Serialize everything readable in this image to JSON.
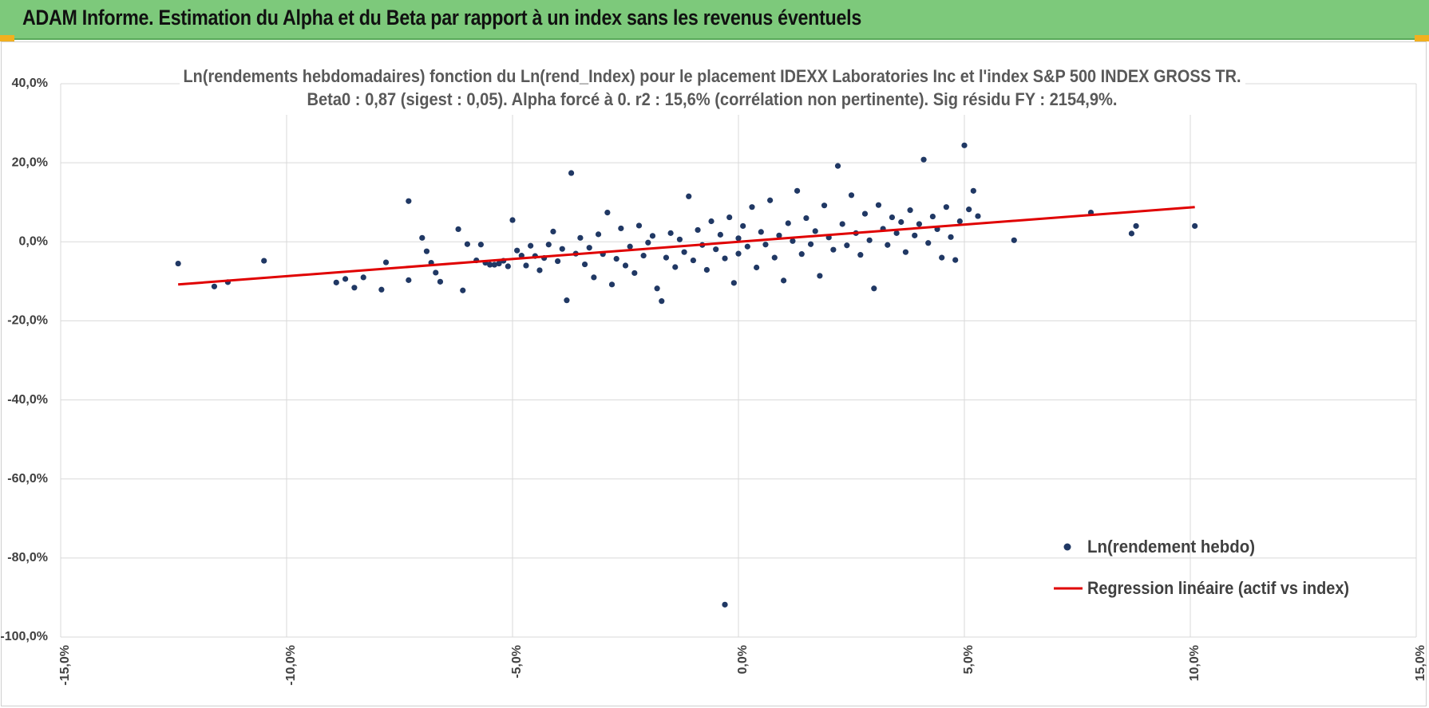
{
  "header": {
    "title": "ADAM Informe. Estimation du Alpha et du Beta par rapport à un index sans les revenus éventuels"
  },
  "colors": {
    "banner": "#7dc97b",
    "accent": "#f2b01e",
    "points": "#203864",
    "regression": "#e00000",
    "grid": "#d9d9d9"
  },
  "chart_data": {
    "type": "scatter",
    "title": "Ln(rendements hebdomadaires) fonction du Ln(rend_Index) pour le placement IDEXX Laboratories Inc et l'index S&P 500 INDEX GROSS TR.",
    "subtitle": "Beta0 : 0,87 (sigest : 0,05).  Alpha forcé à 0. r2 : 15,6% (corrélation non pertinente). Sig résidu FY : 2154,9%.",
    "xlim": [
      -0.15,
      0.15
    ],
    "ylim": [
      -1.0,
      0.4
    ],
    "x_ticks": [
      "-15,0%",
      "-10,0%",
      "-5,0%",
      "0,0%",
      "5,0%",
      "10,0%",
      "15,0%"
    ],
    "y_ticks": [
      "40,0%",
      "20,0%",
      "0,0%",
      "-20,0%",
      "-40,0%",
      "-60,0%",
      "-80,0%",
      "-100,0%"
    ],
    "grid": true,
    "legend_position": "bottom-right",
    "series": [
      {
        "name": "Ln(rendement hebdo)",
        "kind": "scatter",
        "points": [
          [
            -0.124,
            -0.055
          ],
          [
            -0.116,
            -0.113
          ],
          [
            -0.113,
            -0.102
          ],
          [
            -0.105,
            -0.048
          ],
          [
            -0.089,
            -0.103
          ],
          [
            -0.087,
            -0.094
          ],
          [
            -0.085,
            -0.116
          ],
          [
            -0.083,
            -0.09
          ],
          [
            -0.079,
            -0.121
          ],
          [
            -0.078,
            -0.052
          ],
          [
            -0.073,
            0.103
          ],
          [
            -0.073,
            -0.097
          ],
          [
            -0.07,
            0.01
          ],
          [
            -0.069,
            -0.024
          ],
          [
            -0.068,
            -0.053
          ],
          [
            -0.067,
            -0.078
          ],
          [
            -0.066,
            -0.101
          ],
          [
            -0.062,
            0.032
          ],
          [
            -0.061,
            -0.123
          ],
          [
            -0.06,
            -0.006
          ],
          [
            -0.058,
            -0.047
          ],
          [
            -0.057,
            -0.007
          ],
          [
            -0.056,
            -0.053
          ],
          [
            -0.055,
            -0.058
          ],
          [
            -0.054,
            -0.058
          ],
          [
            -0.053,
            -0.055
          ],
          [
            -0.052,
            -0.048
          ],
          [
            -0.051,
            -0.062
          ],
          [
            -0.05,
            0.055
          ],
          [
            -0.049,
            -0.022
          ],
          [
            -0.048,
            -0.035
          ],
          [
            -0.047,
            -0.06
          ],
          [
            -0.046,
            -0.01
          ],
          [
            -0.045,
            -0.036
          ],
          [
            -0.044,
            -0.072
          ],
          [
            -0.043,
            -0.041
          ],
          [
            -0.042,
            -0.007
          ],
          [
            -0.041,
            0.026
          ],
          [
            -0.04,
            -0.049
          ],
          [
            -0.039,
            -0.018
          ],
          [
            -0.038,
            -0.148
          ],
          [
            -0.037,
            0.174
          ],
          [
            -0.036,
            -0.03
          ],
          [
            -0.035,
            0.01
          ],
          [
            -0.034,
            -0.057
          ],
          [
            -0.033,
            -0.015
          ],
          [
            -0.032,
            -0.09
          ],
          [
            -0.031,
            0.019
          ],
          [
            -0.03,
            -0.031
          ],
          [
            -0.029,
            0.074
          ],
          [
            -0.028,
            -0.108
          ],
          [
            -0.027,
            -0.043
          ],
          [
            -0.026,
            0.034
          ],
          [
            -0.025,
            -0.06
          ],
          [
            -0.024,
            -0.012
          ],
          [
            -0.023,
            -0.079
          ],
          [
            -0.022,
            0.041
          ],
          [
            -0.021,
            -0.035
          ],
          [
            -0.02,
            -0.002
          ],
          [
            -0.019,
            0.015
          ],
          [
            -0.018,
            -0.118
          ],
          [
            -0.017,
            -0.15
          ],
          [
            -0.016,
            -0.04
          ],
          [
            -0.015,
            0.022
          ],
          [
            -0.014,
            -0.064
          ],
          [
            -0.013,
            0.006
          ],
          [
            -0.012,
            -0.026
          ],
          [
            -0.011,
            0.115
          ],
          [
            -0.01,
            -0.047
          ],
          [
            -0.009,
            0.03
          ],
          [
            -0.008,
            -0.008
          ],
          [
            -0.007,
            -0.071
          ],
          [
            -0.006,
            0.052
          ],
          [
            -0.005,
            -0.019
          ],
          [
            -0.004,
            0.018
          ],
          [
            -0.003,
            -0.042
          ],
          [
            -0.002,
            0.062
          ],
          [
            -0.001,
            -0.104
          ],
          [
            0.0,
            0.009
          ],
          [
            0.0,
            -0.03
          ],
          [
            0.001,
            0.04
          ],
          [
            0.002,
            -0.012
          ],
          [
            0.003,
            0.088
          ],
          [
            0.004,
            -0.065
          ],
          [
            0.005,
            0.025
          ],
          [
            0.006,
            -0.007
          ],
          [
            0.007,
            0.105
          ],
          [
            0.008,
            -0.04
          ],
          [
            0.009,
            0.016
          ],
          [
            0.01,
            -0.098
          ],
          [
            0.011,
            0.047
          ],
          [
            0.012,
            0.002
          ],
          [
            0.013,
            0.129
          ],
          [
            0.014,
            -0.031
          ],
          [
            0.015,
            0.06
          ],
          [
            0.016,
            -0.006
          ],
          [
            0.017,
            0.027
          ],
          [
            0.018,
            -0.086
          ],
          [
            0.019,
            0.092
          ],
          [
            0.02,
            0.011
          ],
          [
            0.021,
            -0.02
          ],
          [
            0.022,
            0.192
          ],
          [
            0.023,
            0.045
          ],
          [
            0.024,
            -0.009
          ],
          [
            0.025,
            0.118
          ],
          [
            0.026,
            0.022
          ],
          [
            0.027,
            -0.033
          ],
          [
            0.028,
            0.071
          ],
          [
            0.029,
            0.004
          ],
          [
            0.03,
            -0.118
          ],
          [
            0.031,
            0.093
          ],
          [
            0.032,
            0.033
          ],
          [
            0.033,
            -0.008
          ],
          [
            0.034,
            0.062
          ],
          [
            0.035,
            0.022
          ],
          [
            0.036,
            0.05
          ],
          [
            0.037,
            -0.026
          ],
          [
            0.038,
            0.08
          ],
          [
            0.039,
            0.016
          ],
          [
            0.04,
            0.045
          ],
          [
            0.041,
            0.208
          ],
          [
            0.042,
            -0.003
          ],
          [
            0.043,
            0.064
          ],
          [
            0.044,
            0.032
          ],
          [
            0.045,
            -0.04
          ],
          [
            0.046,
            0.088
          ],
          [
            0.047,
            0.012
          ],
          [
            0.048,
            -0.046
          ],
          [
            0.049,
            0.052
          ],
          [
            0.05,
            0.244
          ],
          [
            0.051,
            0.082
          ],
          [
            0.052,
            0.129
          ],
          [
            0.053,
            0.065
          ],
          [
            0.061,
            0.004
          ],
          [
            0.078,
            0.074
          ],
          [
            0.087,
            0.021
          ],
          [
            0.088,
            0.04
          ],
          [
            0.101,
            0.04
          ],
          [
            -0.003,
            -0.918
          ]
        ]
      },
      {
        "name": "Regression linéaire (actif vs index)",
        "kind": "line",
        "slope": 0.87,
        "intercept": 0,
        "x_range": [
          -0.124,
          0.101
        ]
      }
    ]
  },
  "legend": {
    "scatter_label": "Ln(rendement hebdo)",
    "line_label": "Regression linéaire (actif vs index)"
  }
}
